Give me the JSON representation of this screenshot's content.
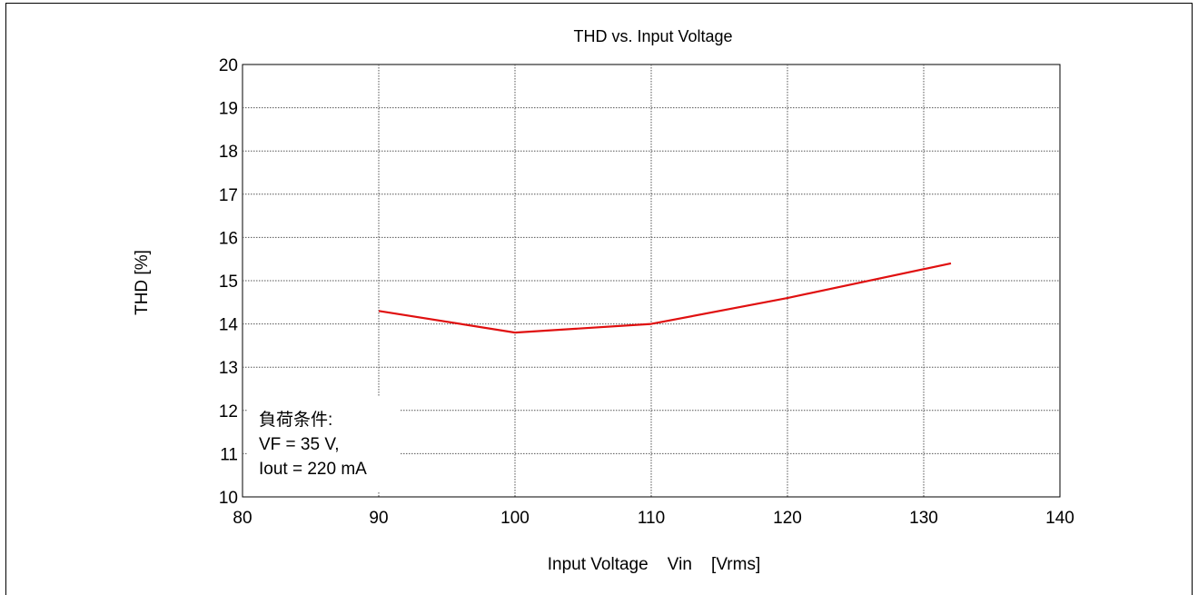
{
  "chart_data": {
    "type": "line",
    "title": "THD vs. Input Voltage",
    "xlabel": "Input Voltage    Vin    [Vrms]",
    "ylabel": "THD [%]",
    "xlim": [
      80,
      140
    ],
    "ylim": [
      10,
      20
    ],
    "xticks": [
      80,
      90,
      100,
      110,
      120,
      130,
      140
    ],
    "yticks": [
      10,
      11,
      12,
      13,
      14,
      15,
      16,
      17,
      18,
      19,
      20
    ],
    "grid": true,
    "series": [
      {
        "x": [
          90,
          100,
          110,
          120,
          132
        ],
        "y": [
          14.3,
          13.8,
          14.0,
          14.6,
          15.4
        ],
        "color": "#e01010"
      }
    ],
    "annotation": {
      "lines": [
        "負荷条件:",
        "VF = 35 V,",
        "Iout = 220 mA"
      ],
      "position": "bottom-left"
    }
  }
}
